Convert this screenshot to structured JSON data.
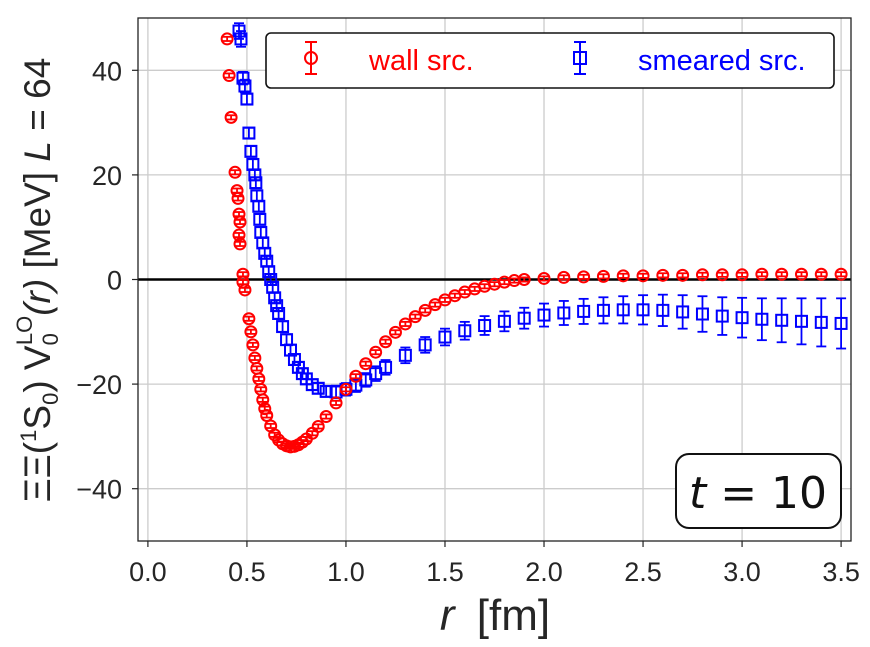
{
  "chart_data": {
    "type": "scatter",
    "title": "",
    "xlabel": {
      "var": "r",
      "unit": "[fm]"
    },
    "ylabel": {
      "prefix": "ΞΞ(",
      "sup1": "1",
      "s": "S",
      "sub0": "0",
      "mid": ") V",
      "subV": "0",
      "supLO": "LO",
      "r": "(r)",
      "unit": " [MeV] ",
      "L": "L",
      "eq": " = 64"
    },
    "xlim": [
      -0.05,
      3.55
    ],
    "ylim": [
      -50,
      50
    ],
    "x_ticks": [
      0.0,
      0.5,
      1.0,
      1.5,
      2.0,
      2.5,
      3.0,
      3.5
    ],
    "x_tick_labels": [
      "0.0",
      "0.5",
      "1.0",
      "1.5",
      "2.0",
      "2.5",
      "3.0",
      "3.5"
    ],
    "y_ticks": [
      -40,
      -20,
      0,
      20,
      40
    ],
    "y_tick_labels": [
      "−40",
      "−20",
      "0",
      "20",
      "40"
    ],
    "grid": true,
    "reference_line": {
      "y": 0,
      "color": "#000000"
    },
    "legend_position": "top-right",
    "annotation": {
      "var": "t",
      "eq": " = 10",
      "position": "bottom-right"
    },
    "series": [
      {
        "name": "wall src.",
        "color": "#ff0000",
        "marker": "circle",
        "points": [
          [
            0.4,
            46.0,
            0.4
          ],
          [
            0.41,
            39.0,
            0.4
          ],
          [
            0.42,
            31.0,
            0.4
          ],
          [
            0.44,
            20.5,
            0.4
          ],
          [
            0.45,
            17.0,
            0.4
          ],
          [
            0.455,
            15.5,
            0.4
          ],
          [
            0.46,
            12.5,
            0.4
          ],
          [
            0.465,
            11.0,
            0.4
          ],
          [
            0.46,
            8.5,
            0.4
          ],
          [
            0.465,
            6.8,
            0.4
          ],
          [
            0.48,
            1.0,
            0.4
          ],
          [
            0.48,
            -0.5,
            0.4
          ],
          [
            0.49,
            -2.0,
            0.4
          ],
          [
            0.51,
            -7.5,
            0.4
          ],
          [
            0.52,
            -10.0,
            0.4
          ],
          [
            0.53,
            -12.5,
            0.4
          ],
          [
            0.54,
            -15.0,
            0.4
          ],
          [
            0.55,
            -17.0,
            0.4
          ],
          [
            0.56,
            -19.0,
            0.4
          ],
          [
            0.57,
            -21.0,
            0.4
          ],
          [
            0.58,
            -23.0,
            0.4
          ],
          [
            0.59,
            -24.7,
            0.4
          ],
          [
            0.6,
            -26.0,
            0.4
          ],
          [
            0.62,
            -28.0,
            0.4
          ],
          [
            0.64,
            -29.7,
            0.4
          ],
          [
            0.66,
            -30.7,
            0.4
          ],
          [
            0.68,
            -31.4,
            0.4
          ],
          [
            0.7,
            -31.8,
            0.4
          ],
          [
            0.72,
            -32.0,
            0.4
          ],
          [
            0.74,
            -31.9,
            0.4
          ],
          [
            0.76,
            -31.6,
            0.4
          ],
          [
            0.78,
            -31.1,
            0.4
          ],
          [
            0.8,
            -30.5,
            0.4
          ],
          [
            0.83,
            -29.4,
            0.4
          ],
          [
            0.86,
            -28.1,
            0.4
          ],
          [
            0.9,
            -26.2,
            0.4
          ],
          [
            0.95,
            -23.6,
            0.4
          ],
          [
            1.0,
            -21.0,
            0.4
          ],
          [
            1.05,
            -18.5,
            0.4
          ],
          [
            1.1,
            -16.1,
            0.4
          ],
          [
            1.15,
            -13.9,
            0.4
          ],
          [
            1.2,
            -11.9,
            0.4
          ],
          [
            1.25,
            -10.1,
            0.4
          ],
          [
            1.3,
            -8.5,
            0.4
          ],
          [
            1.35,
            -7.1,
            0.4
          ],
          [
            1.4,
            -5.9,
            0.4
          ],
          [
            1.45,
            -4.8,
            0.4
          ],
          [
            1.5,
            -3.9,
            0.4
          ],
          [
            1.55,
            -3.1,
            0.4
          ],
          [
            1.6,
            -2.4,
            0.4
          ],
          [
            1.65,
            -1.8,
            0.4
          ],
          [
            1.7,
            -1.3,
            0.4
          ],
          [
            1.75,
            -0.9,
            0.4
          ],
          [
            1.8,
            -0.5,
            0.4
          ],
          [
            1.85,
            -0.2,
            0.4
          ],
          [
            1.9,
            0.0,
            0.4
          ],
          [
            2.0,
            0.2,
            0.4
          ],
          [
            2.1,
            0.4,
            0.4
          ],
          [
            2.2,
            0.5,
            0.4
          ],
          [
            2.3,
            0.6,
            0.4
          ],
          [
            2.4,
            0.7,
            0.4
          ],
          [
            2.5,
            0.7,
            0.4
          ],
          [
            2.6,
            0.8,
            0.4
          ],
          [
            2.7,
            0.8,
            0.4
          ],
          [
            2.8,
            0.9,
            0.4
          ],
          [
            2.9,
            0.9,
            0.4
          ],
          [
            3.0,
            0.9,
            0.4
          ],
          [
            3.1,
            1.0,
            0.4
          ],
          [
            3.2,
            1.0,
            0.4
          ],
          [
            3.3,
            1.0,
            0.4
          ],
          [
            3.4,
            1.0,
            0.4
          ],
          [
            3.5,
            1.0,
            0.4
          ]
        ]
      },
      {
        "name": "smeared src.",
        "color": "#0000ff",
        "marker": "square",
        "points": [
          [
            0.46,
            47.5,
            1.5
          ],
          [
            0.47,
            46.0,
            1.5
          ],
          [
            0.48,
            38.5,
            1.2
          ],
          [
            0.49,
            37.0,
            1.2
          ],
          [
            0.5,
            34.5,
            1.0
          ],
          [
            0.51,
            28.0,
            1.0
          ],
          [
            0.52,
            24.5,
            1.0
          ],
          [
            0.53,
            22.0,
            1.0
          ],
          [
            0.54,
            20.0,
            1.0
          ],
          [
            0.545,
            18.5,
            1.0
          ],
          [
            0.55,
            16.0,
            1.0
          ],
          [
            0.56,
            14.0,
            1.0
          ],
          [
            0.565,
            11.5,
            1.0
          ],
          [
            0.57,
            9.0,
            1.0
          ],
          [
            0.58,
            7.0,
            1.0
          ],
          [
            0.59,
            5.0,
            1.0
          ],
          [
            0.6,
            3.5,
            1.0
          ],
          [
            0.61,
            1.5,
            1.0
          ],
          [
            0.62,
            0.0,
            1.0
          ],
          [
            0.63,
            -1.5,
            1.0
          ],
          [
            0.64,
            -3.5,
            1.0
          ],
          [
            0.65,
            -5.0,
            1.0
          ],
          [
            0.66,
            -6.5,
            1.0
          ],
          [
            0.68,
            -9.0,
            1.0
          ],
          [
            0.7,
            -11.5,
            1.0
          ],
          [
            0.72,
            -13.5,
            1.0
          ],
          [
            0.74,
            -15.3,
            1.0
          ],
          [
            0.76,
            -16.8,
            1.0
          ],
          [
            0.78,
            -18.0,
            1.0
          ],
          [
            0.8,
            -19.0,
            1.0
          ],
          [
            0.83,
            -20.1,
            1.0
          ],
          [
            0.86,
            -20.8,
            1.0
          ],
          [
            0.9,
            -21.4,
            1.0
          ],
          [
            0.95,
            -21.5,
            1.2
          ],
          [
            1.0,
            -21.0,
            1.2
          ],
          [
            1.05,
            -20.2,
            1.3
          ],
          [
            1.1,
            -19.2,
            1.3
          ],
          [
            1.15,
            -18.0,
            1.4
          ],
          [
            1.2,
            -16.8,
            1.4
          ],
          [
            1.3,
            -14.5,
            1.5
          ],
          [
            1.4,
            -12.5,
            1.5
          ],
          [
            1.5,
            -11.0,
            1.6
          ],
          [
            1.6,
            -9.8,
            1.7
          ],
          [
            1.7,
            -8.8,
            1.8
          ],
          [
            1.8,
            -8.0,
            1.9
          ],
          [
            1.9,
            -7.4,
            2.0
          ],
          [
            2.0,
            -6.8,
            2.2
          ],
          [
            2.1,
            -6.4,
            2.3
          ],
          [
            2.2,
            -6.1,
            2.4
          ],
          [
            2.3,
            -5.9,
            2.5
          ],
          [
            2.4,
            -5.8,
            2.6
          ],
          [
            2.5,
            -5.8,
            2.8
          ],
          [
            2.6,
            -5.9,
            3.0
          ],
          [
            2.7,
            -6.2,
            3.2
          ],
          [
            2.8,
            -6.6,
            3.4
          ],
          [
            2.9,
            -7.0,
            3.6
          ],
          [
            3.0,
            -7.3,
            3.8
          ],
          [
            3.1,
            -7.6,
            4.0
          ],
          [
            3.2,
            -7.8,
            4.2
          ],
          [
            3.3,
            -8.0,
            4.4
          ],
          [
            3.4,
            -8.2,
            4.6
          ],
          [
            3.5,
            -8.4,
            4.8
          ]
        ]
      }
    ]
  }
}
